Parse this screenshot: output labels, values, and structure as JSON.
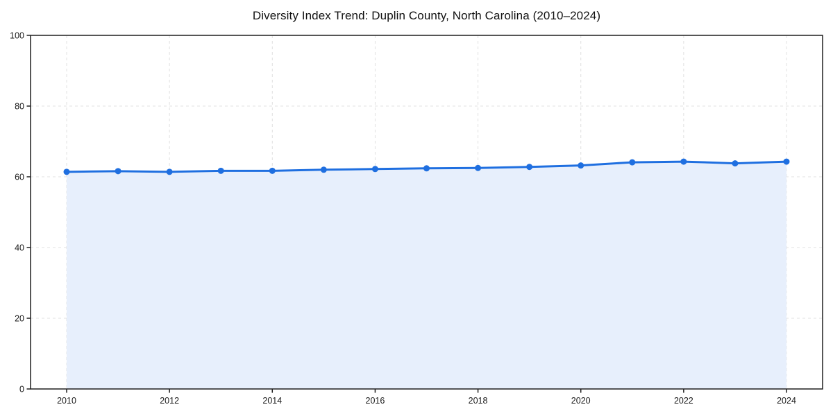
{
  "page": {
    "background": "#ffffff"
  },
  "chart_data": {
    "type": "line",
    "title": "Diversity Index Trend: Duplin County, North Carolina (2010–2024)",
    "x": [
      2010,
      2011,
      2012,
      2013,
      2014,
      2015,
      2016,
      2017,
      2018,
      2019,
      2020,
      2021,
      2022,
      2023,
      2024
    ],
    "series": [
      {
        "name": "Diversity Index",
        "values": [
          61.4,
          61.6,
          61.4,
          61.7,
          61.7,
          62.0,
          62.2,
          62.4,
          62.5,
          62.8,
          63.2,
          64.1,
          64.3,
          63.8,
          64.3
        ]
      }
    ],
    "xlabel": "",
    "ylabel": "",
    "ylim": [
      0,
      100
    ],
    "yticks": [
      0,
      20,
      40,
      60,
      80,
      100
    ],
    "xticks": [
      2010,
      2012,
      2014,
      2016,
      2018,
      2020,
      2022,
      2024
    ],
    "grid": true,
    "grid_style": "dashed",
    "legend_position": "none",
    "marker": "circle",
    "colors": {
      "line": "#1f6fe0",
      "marker": "#1f6fe0",
      "fill": "#e7effc",
      "grid": "#e0e0e0",
      "axis": "#1f1f1f",
      "tick_label": "#1a1a1a",
      "title": "#111111"
    }
  }
}
